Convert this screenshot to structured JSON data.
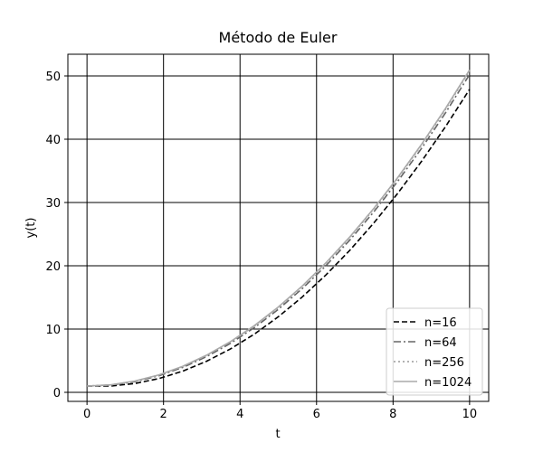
{
  "chart_data": {
    "type": "line",
    "title": "Método de Euler",
    "xlabel": "t",
    "ylabel": "y(t)",
    "x": [
      0,
      0.625,
      1.25,
      1.875,
      2.5,
      3.125,
      3.75,
      4.375,
      5,
      5.625,
      6.25,
      6.875,
      7.5,
      8.125,
      8.75,
      9.375,
      10
    ],
    "series": [
      {
        "name": "n=16",
        "color": "#000000",
        "linestyle": "dashed",
        "values": [
          1,
          1,
          1.39,
          2.17,
          3.34,
          4.91,
          6.86,
          9.2,
          11.94,
          15.06,
          18.58,
          22.48,
          26.78,
          31.47,
          36.55,
          42.02,
          47.88
        ]
      },
      {
        "name": "n=64",
        "color": "#666666",
        "linestyle": "dashdot",
        "values": [
          1,
          1.15,
          1.68,
          2.61,
          3.93,
          5.64,
          7.74,
          10.23,
          13.11,
          16.38,
          20.04,
          24.1,
          28.54,
          33.37,
          38.6,
          44.21,
          50.22
        ]
      },
      {
        "name": "n=256",
        "color": "#999999",
        "linestyle": "dotted",
        "values": [
          1,
          1.18,
          1.76,
          2.72,
          4.08,
          5.82,
          7.96,
          10.48,
          13.4,
          16.71,
          20.41,
          24.5,
          28.98,
          33.85,
          39.11,
          44.76,
          50.8
        ]
      },
      {
        "name": "n=1024",
        "color": "#aaaaaa",
        "linestyle": "solid",
        "values": [
          1,
          1.19,
          1.78,
          2.75,
          4.11,
          5.87,
          8.01,
          10.55,
          13.48,
          16.79,
          20.5,
          24.6,
          29.09,
          33.97,
          39.24,
          44.9,
          50.95
        ]
      }
    ],
    "xlim": [
      -0.5,
      10.5
    ],
    "ylim": [
      -1.43,
      53.43
    ],
    "xticks": [
      0,
      2,
      4,
      6,
      8,
      10
    ],
    "yticks": [
      0,
      10,
      20,
      30,
      40,
      50
    ],
    "grid": true,
    "legend": "lower right"
  }
}
